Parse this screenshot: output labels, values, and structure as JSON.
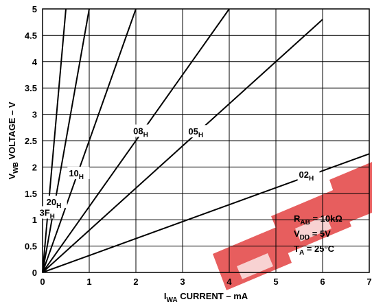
{
  "chart_data": {
    "type": "line",
    "xlabel": {
      "main": "I",
      "sub": "WA",
      "rest": " CURRENT – mA"
    },
    "ylabel": {
      "main": "V",
      "sub": "WB",
      "rest": " VOLTAGE – V"
    },
    "xlim": [
      0,
      7
    ],
    "ylim": [
      0,
      5
    ],
    "x_ticks": [
      "0",
      "1",
      "2",
      "3",
      "4",
      "5",
      "6",
      "7"
    ],
    "y_ticks": [
      "0",
      "0.5",
      "1",
      "1.5",
      "2",
      "2.5",
      "3",
      "3.5",
      "4",
      "4.5",
      "5"
    ],
    "grid": true,
    "series": [
      {
        "name": "3F",
        "name_sub": "H",
        "points": [
          [
            0,
            0
          ],
          [
            0.5,
            5
          ]
        ]
      },
      {
        "name": "20",
        "name_sub": "H",
        "points": [
          [
            0,
            0
          ],
          [
            1.0,
            5
          ]
        ]
      },
      {
        "name": "10",
        "name_sub": "H",
        "points": [
          [
            0,
            0
          ],
          [
            2.0,
            5
          ]
        ]
      },
      {
        "name": "08",
        "name_sub": "H",
        "points": [
          [
            0,
            0
          ],
          [
            4.0,
            5
          ]
        ]
      },
      {
        "name": "05",
        "name_sub": "H",
        "points": [
          [
            0,
            0
          ],
          [
            6.0,
            4.8
          ]
        ]
      },
      {
        "name": "02",
        "name_sub": "H",
        "points": [
          [
            0,
            0
          ],
          [
            7.0,
            2.25
          ]
        ]
      }
    ],
    "annotations": [
      {
        "main": "R",
        "sub": "AB",
        "rest": " = 10kΩ"
      },
      {
        "main": "V",
        "sub": "DD",
        "rest": " = 5V"
      },
      {
        "main": "T",
        "sub": "A",
        "rest": " = 25°C"
      }
    ]
  },
  "colors": {
    "line": "#000000",
    "grid": "#000000",
    "watermark": "#e23b3b"
  }
}
